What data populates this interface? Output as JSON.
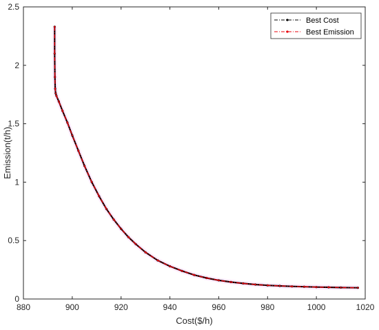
{
  "chart_data": {
    "type": "line",
    "title": "",
    "xlabel": "Cost($/h)",
    "ylabel": "Emission(t/h)",
    "xlim": [
      880,
      1020
    ],
    "ylim": [
      0,
      2.5
    ],
    "xticks": [
      880,
      900,
      920,
      940,
      960,
      980,
      1000,
      1020
    ],
    "xtick_labels": [
      "880",
      "900",
      "920",
      "940",
      "960",
      "980",
      "1000",
      "1020"
    ],
    "yticks": [
      0,
      0.5,
      1,
      1.5,
      2,
      2.5
    ],
    "ytick_labels": [
      "0",
      "0.5",
      "1",
      "1.5",
      "2",
      "2.5"
    ],
    "grid": false,
    "legend_position": "top-right",
    "series": [
      {
        "name": "Best Cost",
        "color": "#000000",
        "line_style": "dash-dot",
        "marker": "dot",
        "x": [
          892.8,
          892.8,
          892.9,
          893.0,
          893.2,
          893.5,
          894.5,
          896.0,
          898.0,
          900.0,
          902.5,
          905.0,
          908.0,
          911.0,
          914.0,
          917.0,
          920.0,
          923.0,
          926.0,
          930.0,
          935.0,
          940.0,
          945.0,
          950.0,
          955.0,
          960.0,
          965.0,
          970.0,
          975.0,
          980.0,
          985.0,
          990.0,
          995.0,
          1000.0,
          1005.0,
          1010.0,
          1017.0
        ],
        "y": [
          2.33,
          2.1,
          1.9,
          1.8,
          1.76,
          1.74,
          1.69,
          1.61,
          1.51,
          1.4,
          1.27,
          1.14,
          1.0,
          0.88,
          0.77,
          0.68,
          0.6,
          0.53,
          0.47,
          0.4,
          0.33,
          0.28,
          0.24,
          0.205,
          0.18,
          0.16,
          0.145,
          0.133,
          0.124,
          0.117,
          0.112,
          0.108,
          0.105,
          0.102,
          0.1,
          0.098,
          0.096
        ]
      },
      {
        "name": "Best Emission",
        "color": "#e8000b",
        "line_style": "dash-dot",
        "marker": "dot",
        "x": [
          892.8,
          892.8,
          892.9,
          893.0,
          893.2,
          893.5,
          894.5,
          896.0,
          898.0,
          900.0,
          902.5,
          905.0,
          908.0,
          911.0,
          914.0,
          917.0,
          920.0,
          923.0,
          926.0,
          930.0,
          935.0,
          940.0,
          945.0,
          950.0,
          955.0,
          960.0,
          965.0,
          970.0,
          975.0,
          980.0,
          985.0,
          990.0,
          995.0,
          1000.0,
          1005.0,
          1010.0,
          1017.0
        ],
        "y": [
          2.33,
          2.1,
          1.9,
          1.8,
          1.76,
          1.74,
          1.69,
          1.61,
          1.51,
          1.4,
          1.27,
          1.14,
          1.0,
          0.88,
          0.77,
          0.68,
          0.6,
          0.53,
          0.47,
          0.4,
          0.33,
          0.28,
          0.24,
          0.205,
          0.18,
          0.16,
          0.145,
          0.133,
          0.124,
          0.117,
          0.112,
          0.108,
          0.105,
          0.102,
          0.1,
          0.098,
          0.096
        ]
      }
    ]
  }
}
